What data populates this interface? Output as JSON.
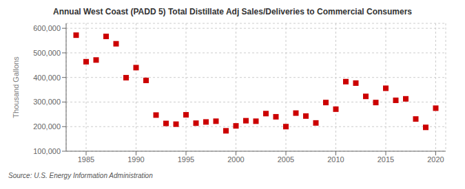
{
  "chart_data": {
    "type": "scatter",
    "title": "Annual West Coast (PADD 5) Total Distillate Adj Sales/Deliveries to Commercial Consumers",
    "ylabel": "Thousand Gallons",
    "annotations": [
      "Source: U.S. Energy Information Administration"
    ],
    "color": "#cc0000",
    "marker": "square",
    "grid": true,
    "xlim": [
      1983,
      2021
    ],
    "ylim": [
      100000,
      620000
    ],
    "xticks": [
      1985,
      1990,
      1995,
      2000,
      2005,
      2010,
      2015,
      2020
    ],
    "yticks": [
      {
        "value": 100000,
        "label": "100,000"
      },
      {
        "value": 200000,
        "label": "200,000"
      },
      {
        "value": 300000,
        "label": "300,000"
      },
      {
        "value": 400000,
        "label": "400,000"
      },
      {
        "value": 500000,
        "label": "500,000"
      },
      {
        "value": 600000,
        "label": "600,000"
      }
    ],
    "x": [
      1984,
      1985,
      1986,
      1987,
      1988,
      1989,
      1990,
      1991,
      1992,
      1993,
      1994,
      1995,
      1996,
      1997,
      1998,
      1999,
      2000,
      2001,
      2002,
      2003,
      2004,
      2005,
      2006,
      2007,
      2008,
      2009,
      2010,
      2011,
      2012,
      2013,
      2014,
      2015,
      2016,
      2017,
      2018,
      2019,
      2020
    ],
    "values": [
      572000,
      464000,
      471000,
      567000,
      537000,
      399000,
      440000,
      388000,
      247000,
      213000,
      210000,
      248000,
      214000,
      219000,
      222000,
      183000,
      203000,
      224000,
      222000,
      253000,
      240000,
      200000,
      255000,
      243000,
      215000,
      298000,
      271000,
      383000,
      377000,
      323000,
      298000,
      356000,
      307000,
      313000,
      231000,
      197000,
      275000
    ]
  }
}
